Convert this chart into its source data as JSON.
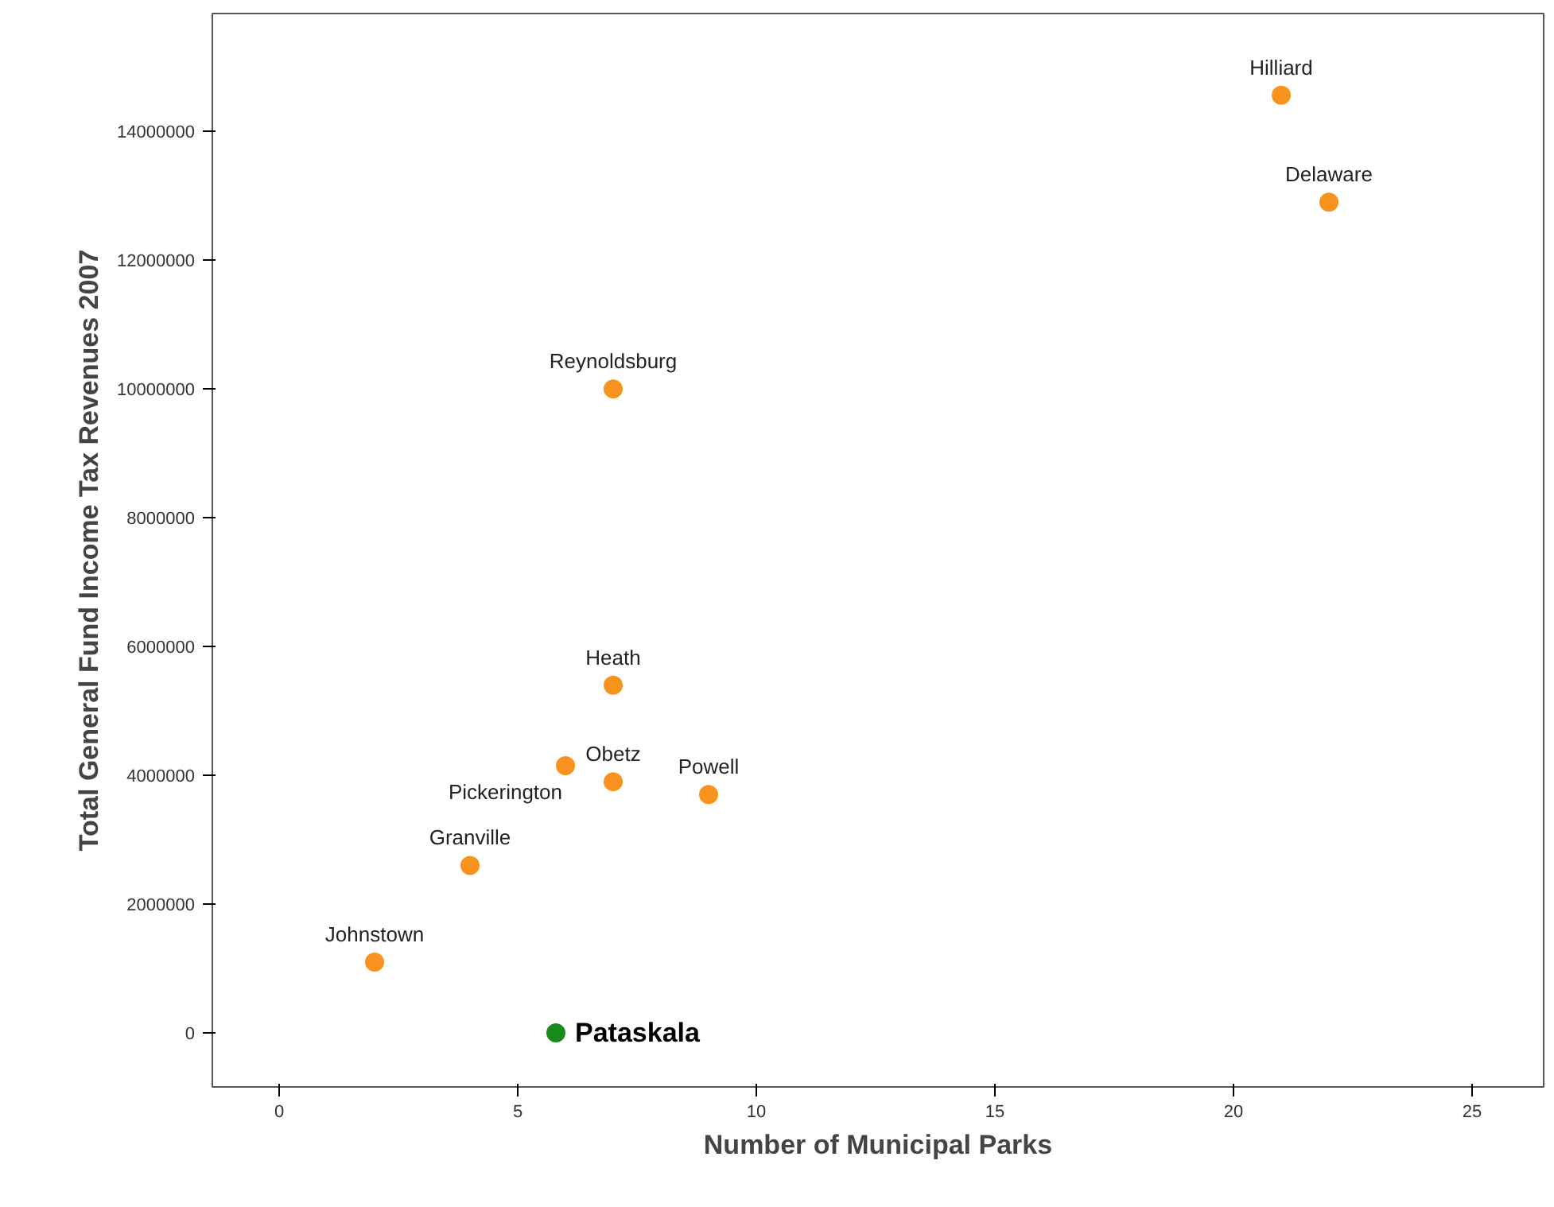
{
  "chart_data": {
    "type": "scatter",
    "xlabel": "Number of Municipal Parks",
    "ylabel": "Total General Fund Income Tax Revenues 2007",
    "series": [
      {
        "color": "#f7931e",
        "x": [
          21,
          22,
          7,
          7,
          6,
          7,
          9,
          4,
          2
        ],
        "values": [
          14560000,
          12900000,
          10000000,
          5400000,
          4150000,
          3900000,
          3700000,
          2600000,
          1100000
        ]
      },
      {
        "name": "Pataskala",
        "color": "#1a8a1a",
        "x": [
          5.8
        ],
        "values": [
          0
        ]
      }
    ],
    "annotations": [
      {
        "text": "Hilliard",
        "x": 21,
        "y": 14560000
      },
      {
        "text": "Delaware",
        "x": 22,
        "y": 12900000
      },
      {
        "text": "Reynoldsburg",
        "x": 7,
        "y": 10000000
      },
      {
        "text": "Heath",
        "x": 7,
        "y": 5400000
      },
      {
        "text": "Pickerington",
        "x": 6,
        "y": 4150000
      },
      {
        "text": "Obetz",
        "x": 7,
        "y": 3900000
      },
      {
        "text": "Powell",
        "x": 9,
        "y": 3700000
      },
      {
        "text": "Granville",
        "x": 4,
        "y": 2600000
      },
      {
        "text": "Johnstown",
        "x": 2,
        "y": 1100000
      }
    ],
    "xlim": [
      -1.4,
      26.5
    ],
    "ylim": [
      -840000,
      15830000
    ],
    "xticks": [
      0,
      5,
      10,
      15,
      20,
      25
    ],
    "yticks": [
      0,
      2000000,
      4000000,
      6000000,
      8000000,
      10000000,
      12000000,
      14000000
    ],
    "grid": false,
    "marker": "circle"
  }
}
